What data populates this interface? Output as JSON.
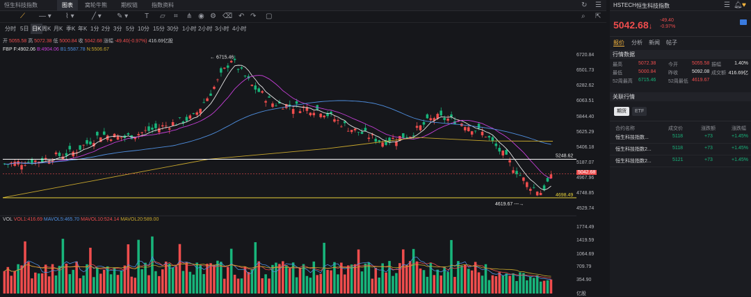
{
  "tabs": {
    "items": [
      "恒生科技指数",
      "图表",
      "窝轮牛熊",
      "期权链",
      "指数资料"
    ],
    "active": 1
  },
  "toolbar": {
    "icons": [
      "line-style-icon",
      "indicator-icon",
      "draw-line-icon",
      "draw-brush-icon",
      "text-tool-icon",
      "ruler-icon",
      "magnet-icon",
      "eye-icon",
      "settings-icon",
      "gear-tool-icon",
      "undo-icon",
      "redo-icon",
      "camera-icon"
    ]
  },
  "window_icons": [
    "refresh-icon",
    "menu-icon",
    "expand-icon",
    "collapse-icon"
  ],
  "periods": {
    "items": [
      "分时",
      "5日",
      "日K",
      "周K",
      "月K",
      "季K",
      "年K",
      "1分",
      "2分",
      "3分",
      "5分",
      "10分",
      "15分",
      "30分",
      "1小时",
      "2小时",
      "3小时",
      "4小时"
    ],
    "active": 2
  },
  "ohlc": {
    "open_label": "开",
    "open": "5055.58",
    "high_label": "高",
    "high": "5072.38",
    "low_label": "低",
    "low": "5000.84",
    "close_label": "收",
    "close": "5042.68",
    "chg_label": "涨幅",
    "chg": "-49.40(-0.97%)",
    "amount": "416.69亿股"
  },
  "bands": {
    "fbp": "FBP",
    "f": "F:4902.06",
    "b": "B:4904.06",
    "b1": "B1:5587.78",
    "n": "N:5506.67"
  },
  "annotations": {
    "high": "6715.46",
    "low": "4619.67",
    "line1": "5248.62",
    "line2": "4698.49",
    "last": "5042.68"
  },
  "price_axis": [
    "6720.84",
    "6501.73",
    "6282.62",
    "6063.51",
    "5844.40",
    "5625.29",
    "5406.18",
    "5187.07",
    "4967.96",
    "4748.85",
    "4529.74"
  ],
  "vol_axis": [
    "1774.49",
    "1419.59",
    "1064.69",
    "709.79",
    "354.90",
    "亿股"
  ],
  "vol_info": {
    "vol": "VOL",
    "vol1": "VOL1:416.69",
    "mavol5": "MAVOL5:465.70",
    "mavol10": "MAVOL10:524.14",
    "mavol20": "MAVOL20:589.00"
  },
  "colors": {
    "up": "#ef4d4d",
    "down": "#18b57b",
    "ma1": "#e6e6e6",
    "ma2": "#c63fd8",
    "ma3": "#4f8fe0",
    "ma4": "#c9a82d"
  },
  "right": {
    "code": "HSTECH",
    "name": "恒生科技指数",
    "price": "5042.68",
    "arrow": "↓",
    "chg": "-49.40",
    "pct": "-0.97%",
    "icons": [
      "menu-icon",
      "bell-icon",
      "heart-icon"
    ],
    "tabs": [
      "报价",
      "分析",
      "新闻",
      "帖子"
    ],
    "section1": "行情数据",
    "rows": [
      [
        {
          "k": "最高",
          "v": "5072.38",
          "c": "up"
        },
        {
          "k": "今开",
          "v": "5055.58",
          "c": "up"
        },
        {
          "k": "振幅",
          "v": "1.40%",
          "c": "w"
        }
      ],
      [
        {
          "k": "最低",
          "v": "5000.84",
          "c": "up"
        },
        {
          "k": "昨收",
          "v": "5092.08",
          "c": "w"
        },
        {
          "k": "成交额",
          "v": "416.69亿",
          "c": "w"
        }
      ],
      [
        {
          "k": "52周最高",
          "v": "6715.46",
          "c": "down"
        },
        {
          "k": "52周最低",
          "v": "4619.67",
          "c": "up"
        }
      ]
    ],
    "section2": "关联行情",
    "pills": [
      "期货",
      "ETF"
    ],
    "headers": [
      "合约名称",
      "成交价",
      "涨跌额",
      "涨跌幅"
    ],
    "table": [
      {
        "name": "恒生科技指数...",
        "price": "5118",
        "chg": "+73",
        "pct": "+1.45%"
      },
      {
        "name": "恒生科技指数2...",
        "price": "5118",
        "chg": "+73",
        "pct": "+1.45%"
      },
      {
        "name": "恒生科技指数2...",
        "price": "5121",
        "chg": "+73",
        "pct": "+1.45%"
      }
    ]
  }
}
